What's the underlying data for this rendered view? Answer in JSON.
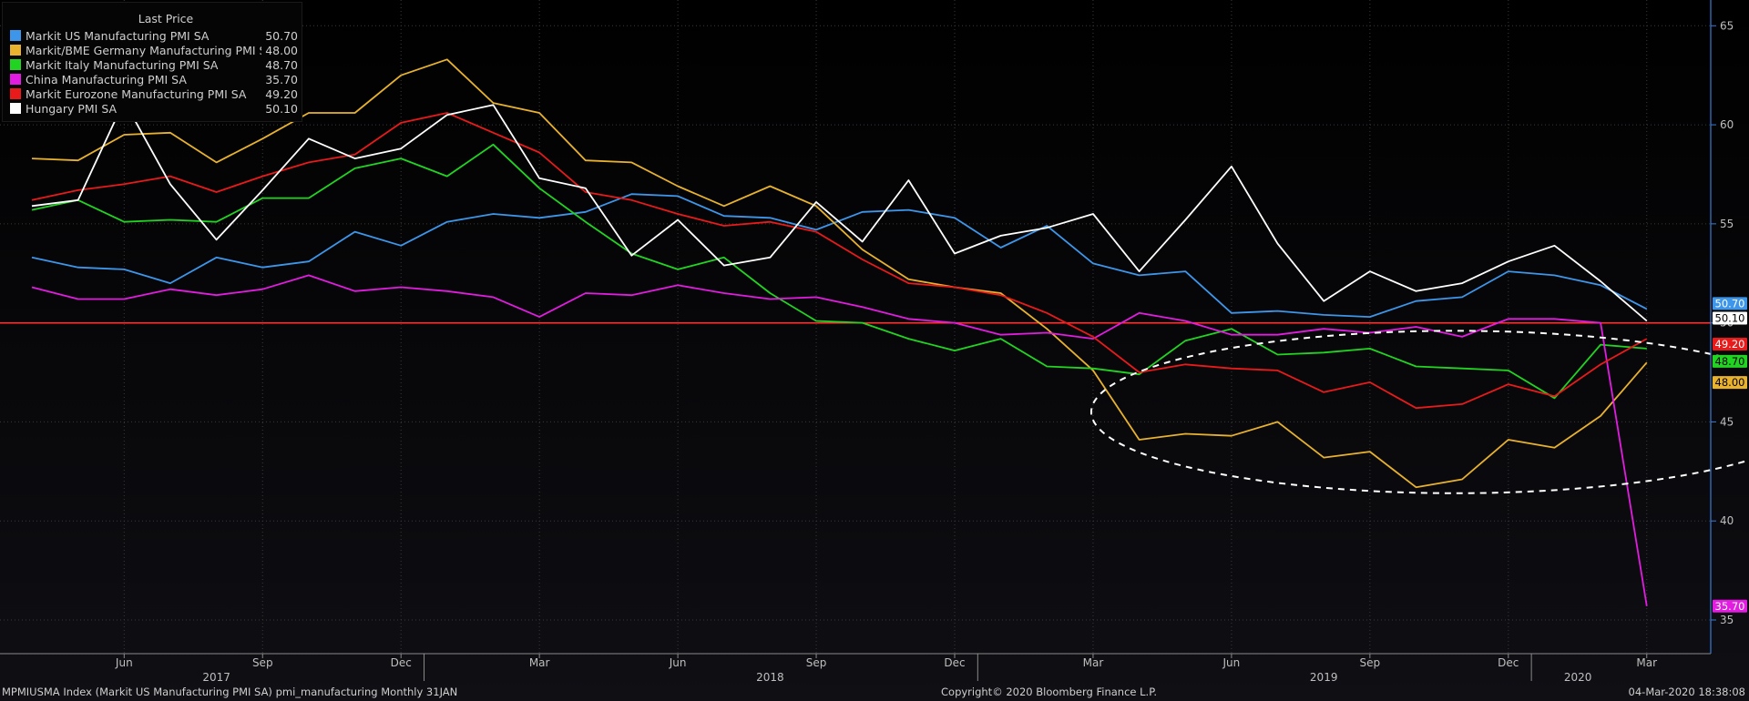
{
  "chart_data": {
    "type": "line",
    "legend": {
      "header": "Last Price",
      "placement": "top-left"
    },
    "x": [
      "2017-03",
      "2017-04",
      "2017-05",
      "2017-06",
      "2017-07",
      "2017-08",
      "2017-09",
      "2017-10",
      "2017-11",
      "2017-12",
      "2018-01",
      "2018-02",
      "2018-03",
      "2018-04",
      "2018-05",
      "2018-06",
      "2018-07",
      "2018-08",
      "2018-09",
      "2018-10",
      "2018-11",
      "2018-12",
      "2019-01",
      "2019-02",
      "2019-03",
      "2019-04",
      "2019-05",
      "2019-06",
      "2019-07",
      "2019-08",
      "2019-09",
      "2019-10",
      "2019-11",
      "2019-12",
      "2020-01",
      "2020-02"
    ],
    "series": [
      {
        "name": "Markit US Manufacturing PMI SA",
        "last": "50.70",
        "color": "#3d96ea",
        "values": [
          53.3,
          52.8,
          52.7,
          52.0,
          53.3,
          52.8,
          53.1,
          54.6,
          53.9,
          55.1,
          55.5,
          55.3,
          55.6,
          56.5,
          56.4,
          55.4,
          55.3,
          54.7,
          55.6,
          55.7,
          55.3,
          53.8,
          54.9,
          53.0,
          52.4,
          52.6,
          50.5,
          50.6,
          50.4,
          50.3,
          51.1,
          51.3,
          52.6,
          52.4,
          51.9,
          50.7
        ]
      },
      {
        "name": "Markit/BME Germany Manufacturing PMI SA",
        "last": "48.00",
        "color": "#e8b22e",
        "values": [
          58.3,
          58.2,
          59.5,
          59.6,
          58.1,
          59.3,
          60.6,
          60.6,
          62.5,
          63.3,
          61.1,
          60.6,
          58.2,
          58.1,
          56.9,
          55.9,
          56.9,
          55.9,
          53.7,
          52.2,
          51.8,
          51.5,
          49.7,
          47.6,
          44.1,
          44.4,
          44.3,
          45.0,
          43.2,
          43.5,
          41.7,
          42.1,
          44.1,
          43.7,
          45.3,
          48.0
        ]
      },
      {
        "name": "Markit Italy Manufacturing PMI SA",
        "last": "48.70",
        "color": "#22d422",
        "values": [
          55.7,
          56.2,
          55.1,
          55.2,
          55.1,
          56.3,
          56.3,
          57.8,
          58.3,
          57.4,
          59.0,
          56.8,
          55.1,
          53.5,
          52.7,
          53.3,
          51.5,
          50.1,
          50.0,
          49.2,
          48.6,
          49.2,
          47.8,
          47.7,
          47.4,
          49.1,
          49.7,
          48.4,
          48.5,
          48.7,
          47.8,
          47.7,
          47.6,
          46.2,
          48.9,
          48.7
        ]
      },
      {
        "name": "China Manufacturing PMI SA",
        "last": "35.70",
        "color": "#e21ce0",
        "values": [
          51.8,
          51.2,
          51.2,
          51.7,
          51.4,
          51.7,
          52.4,
          51.6,
          51.8,
          51.6,
          51.3,
          50.3,
          51.5,
          51.4,
          51.9,
          51.5,
          51.2,
          51.3,
          50.8,
          50.2,
          50.0,
          49.4,
          49.5,
          49.2,
          50.5,
          50.1,
          49.4,
          49.4,
          49.7,
          49.5,
          49.8,
          49.3,
          50.2,
          50.2,
          50.0,
          35.7
        ]
      },
      {
        "name": "Markit Eurozone Manufacturing PMI SA",
        "last": "49.20",
        "color": "#e81a1a",
        "values": [
          56.2,
          56.7,
          57.0,
          57.4,
          56.6,
          57.4,
          58.1,
          58.5,
          60.1,
          60.6,
          59.6,
          58.6,
          56.6,
          56.2,
          55.5,
          54.9,
          55.1,
          54.6,
          53.2,
          52.0,
          51.8,
          51.4,
          50.5,
          49.3,
          47.5,
          47.9,
          47.7,
          47.6,
          46.5,
          47.0,
          45.7,
          45.9,
          46.9,
          46.3,
          47.9,
          49.2
        ]
      },
      {
        "name": "Hungary PMI SA",
        "last": "50.10",
        "color": "#ffffff",
        "values": [
          55.9,
          56.2,
          61.2,
          57.0,
          54.2,
          56.7,
          59.3,
          58.3,
          58.8,
          60.5,
          61.0,
          57.3,
          56.8,
          53.4,
          55.2,
          52.9,
          53.3,
          56.1,
          54.1,
          57.2,
          53.5,
          54.4,
          54.8,
          55.5,
          52.6,
          55.2,
          57.9,
          54.0,
          51.1,
          52.6,
          51.6,
          52.0,
          53.1,
          53.9,
          52.1,
          50.1
        ]
      }
    ],
    "y_ticks": [
      "65",
      "60",
      "55",
      "50",
      "45",
      "40",
      "35"
    ],
    "ylim": [
      33.3,
      66.3
    ],
    "x_tick_labels": [
      {
        "month": "2017-05",
        "label": "Jun"
      },
      {
        "month": "2017-08",
        "label": "Sep"
      },
      {
        "month": "2017-11",
        "label": "Dec"
      },
      {
        "month": "2018-02",
        "label": "Mar"
      },
      {
        "month": "2018-05",
        "label": "Jun"
      },
      {
        "month": "2018-08",
        "label": "Sep"
      },
      {
        "month": "2018-11",
        "label": "Dec"
      },
      {
        "month": "2019-02",
        "label": "Mar"
      },
      {
        "month": "2019-05",
        "label": "Jun"
      },
      {
        "month": "2019-08",
        "label": "Sep"
      },
      {
        "month": "2019-11",
        "label": "Dec"
      },
      {
        "month": "2020-02",
        "label": "Mar"
      }
    ],
    "year_labels": [
      {
        "month": "2017-07",
        "label": "2017"
      },
      {
        "month": "2018-07",
        "label": "2018"
      },
      {
        "month": "2019-07",
        "label": "2019"
      },
      {
        "month": "2020-01",
        "label": "2020"
      }
    ],
    "reference_line": {
      "value": 50,
      "color": "#ff3030"
    },
    "annotation": {
      "type": "dashed-ellipse",
      "color": "#ffffff"
    },
    "grid": true,
    "background": "#000000"
  },
  "footer": {
    "left": "MPMIUSMA Index (Markit US Manufacturing PMI SA) pmi_manufacturing  Monthly 31JAN",
    "center": "Copyright© 2020 Bloomberg Finance L.P.",
    "right": "04-Mar-2020 18:38:08"
  }
}
